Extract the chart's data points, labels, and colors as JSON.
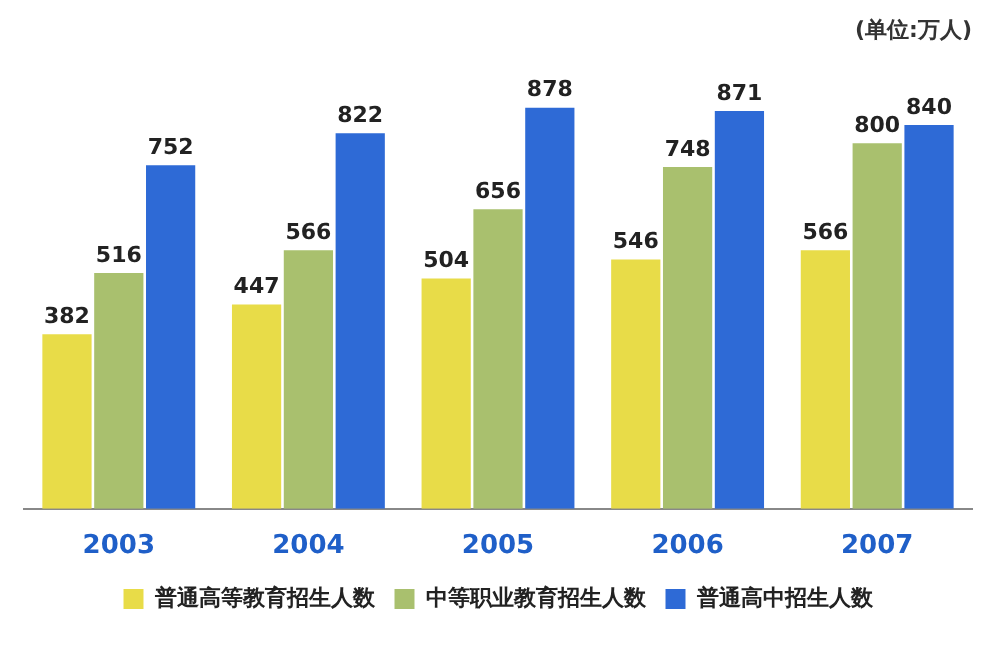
{
  "chart_data": {
    "type": "bar",
    "categories": [
      "2003",
      "2004",
      "2005",
      "2006",
      "2007"
    ],
    "series": [
      {
        "name": "普通高等教育招生人数",
        "color": "#e8dc48",
        "values": [
          382,
          447,
          504,
          546,
          566
        ]
      },
      {
        "name": "中等职业教育招生人数",
        "color": "#a9c06e",
        "values": [
          516,
          566,
          656,
          748,
          800
        ]
      },
      {
        "name": "普通高中招生人数",
        "color": "#2e6ad6",
        "values": [
          752,
          822,
          878,
          871,
          840
        ]
      }
    ],
    "data_labels": true,
    "legend": "bottom",
    "grid": false,
    "annotations": [
      "(单位:万人)"
    ]
  }
}
